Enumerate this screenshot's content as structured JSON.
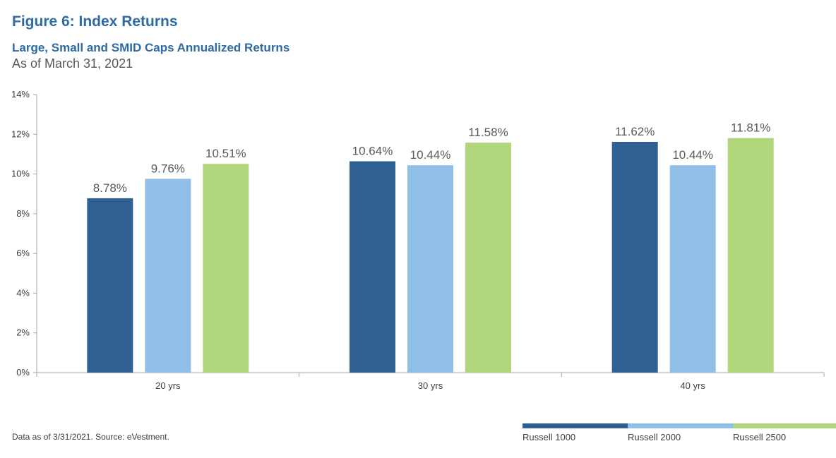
{
  "title": "Figure 6: Index Returns",
  "subtitle": "Large, Small and SMID Caps Annualized Returns",
  "as_of": "As of March 31, 2021",
  "footnote": "Data as of 3/31/2021. Source: eVestment.",
  "colors": {
    "title": "#2f6aa3",
    "russell_1000": "#2e6192",
    "russell_2000": "#8fbee6",
    "russell_2500": "#b2d67b"
  },
  "chart_data": {
    "type": "bar",
    "categories": [
      "20 yrs",
      "30 yrs",
      "40 yrs"
    ],
    "series": [
      {
        "name": "Russell 1000",
        "values": [
          8.78,
          10.64,
          11.62
        ],
        "labels": [
          "8.78%",
          "10.64%",
          "11.62%"
        ],
        "color": "#2e6192"
      },
      {
        "name": "Russell 2000",
        "values": [
          9.76,
          10.44,
          10.44
        ],
        "labels": [
          "9.76%",
          "10.44%",
          "10.44%"
        ],
        "color": "#8fbee6"
      },
      {
        "name": "Russell 2500",
        "values": [
          10.51,
          11.58,
          11.81
        ],
        "labels": [
          "10.51%",
          "11.58%",
          "11.81%"
        ],
        "color": "#b2d67b"
      }
    ],
    "ylim": [
      0,
      14
    ],
    "yticks": [
      "0%",
      "2%",
      "4%",
      "6%",
      "8%",
      "10%",
      "12%",
      "14%"
    ],
    "grid": false,
    "legend_position": "bottom-right"
  }
}
